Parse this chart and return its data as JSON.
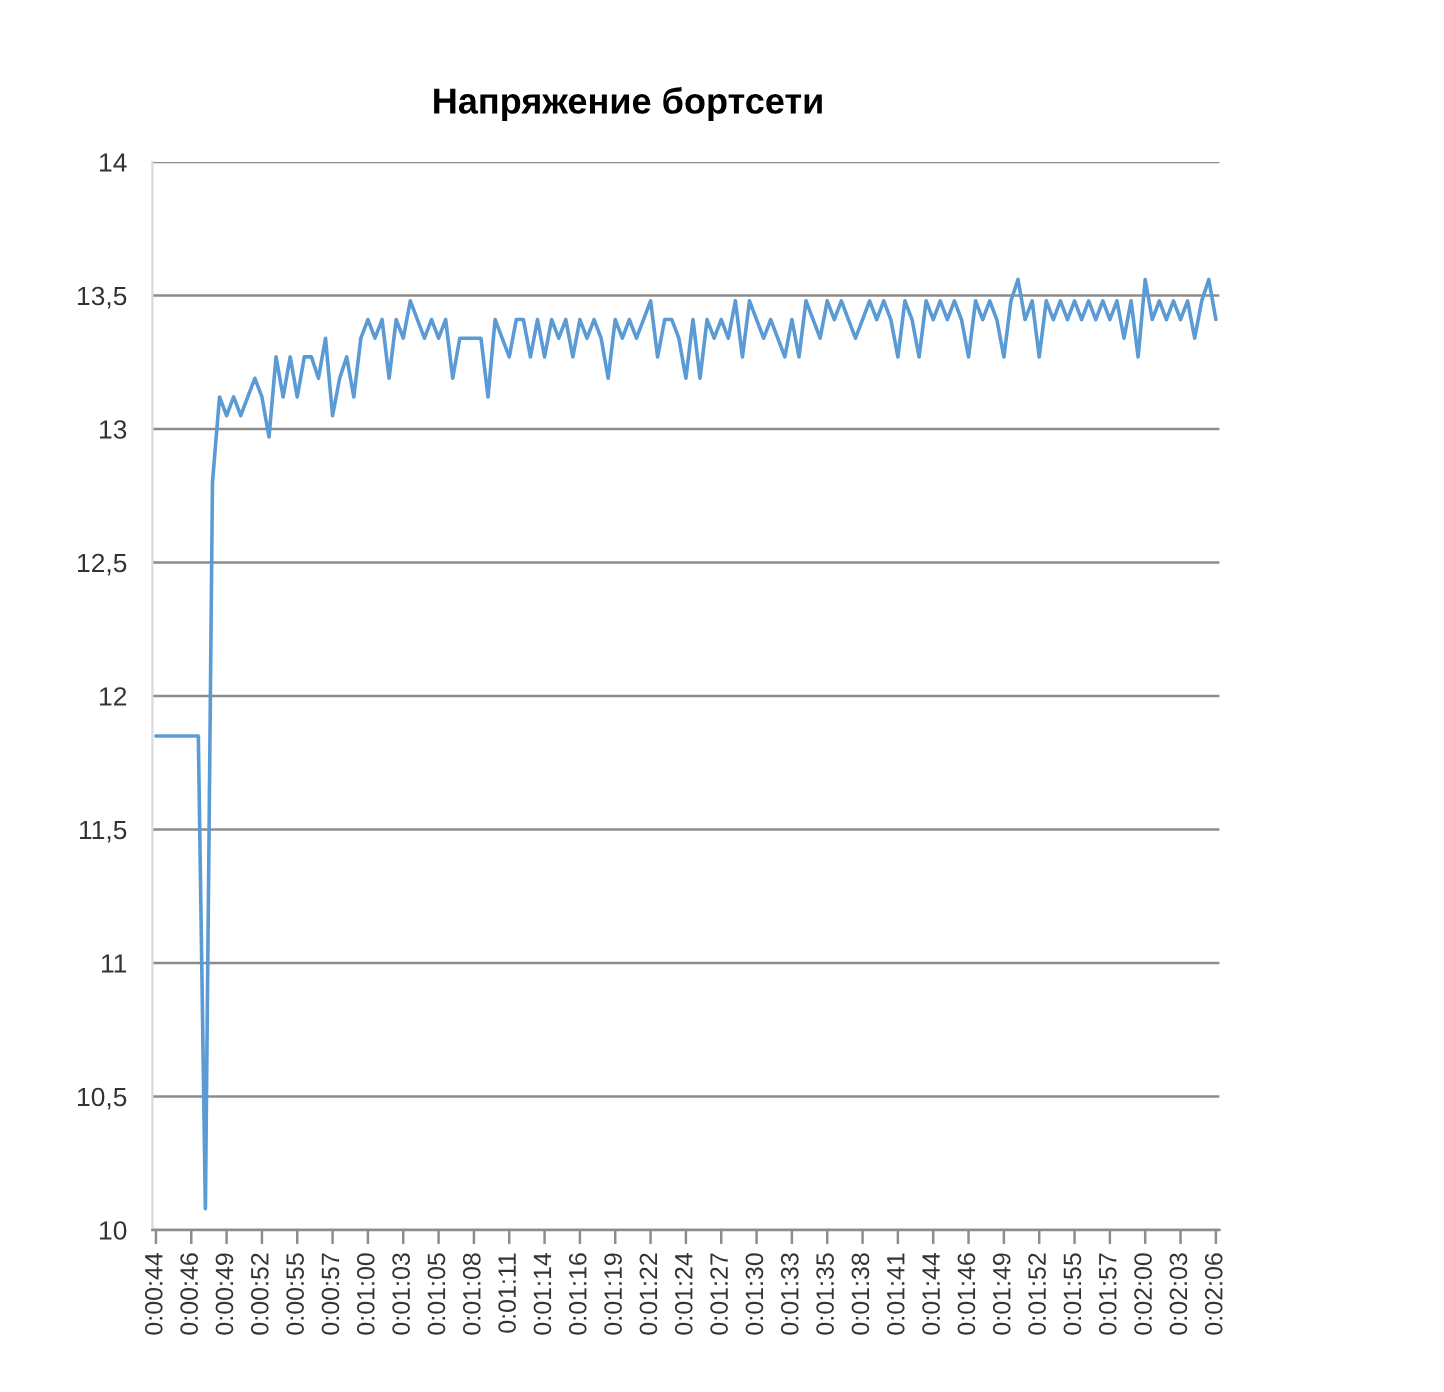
{
  "chart_data": {
    "type": "line",
    "title": "Напряжение бортсети",
    "categories": [
      "0:00:44",
      null,
      null,
      null,
      null,
      "0:00:46",
      null,
      null,
      null,
      null,
      "0:00:49",
      null,
      null,
      null,
      null,
      "0:00:52",
      null,
      null,
      null,
      null,
      "0:00:55",
      null,
      null,
      null,
      null,
      "0:00:57",
      null,
      null,
      null,
      null,
      "0:01:00",
      null,
      null,
      null,
      null,
      "0:01:03",
      null,
      null,
      null,
      null,
      "0:01:05",
      null,
      null,
      null,
      null,
      "0:01:08",
      null,
      null,
      null,
      null,
      "0:01:11",
      null,
      null,
      null,
      null,
      "0:01:14",
      null,
      null,
      null,
      null,
      "0:01:16",
      null,
      null,
      null,
      null,
      "0:01:19",
      null,
      null,
      null,
      null,
      "0:01:22",
      null,
      null,
      null,
      null,
      "0:01:24",
      null,
      null,
      null,
      null,
      "0:01:27",
      null,
      null,
      null,
      null,
      "0:01:30",
      null,
      null,
      null,
      null,
      "0:01:33",
      null,
      null,
      null,
      null,
      "0:01:35",
      null,
      null,
      null,
      null,
      "0:01:38",
      null,
      null,
      null,
      null,
      "0:01:41",
      null,
      null,
      null,
      null,
      "0:01:44",
      null,
      null,
      null,
      null,
      "0:01:46",
      null,
      null,
      null,
      null,
      "0:01:49",
      null,
      null,
      null,
      null,
      "0:01:52",
      null,
      null,
      null,
      null,
      "0:01:55",
      null,
      null,
      null,
      null,
      "0:01:57",
      null,
      null,
      null,
      null,
      "0:02:00",
      null,
      null,
      null,
      null,
      "0:02:03",
      null,
      null,
      null,
      null,
      "0:02:06"
    ],
    "series": [
      {
        "color": "#5b9bd5",
        "values": [
          11.85,
          11.85,
          11.85,
          11.85,
          11.85,
          11.85,
          11.85,
          10.08,
          12.8,
          13.12,
          13.05,
          13.12,
          13.05,
          13.12,
          13.19,
          13.12,
          12.97,
          13.27,
          13.12,
          13.27,
          13.12,
          13.27,
          13.27,
          13.19,
          13.34,
          13.05,
          13.19,
          13.27,
          13.12,
          13.34,
          13.41,
          13.34,
          13.41,
          13.19,
          13.41,
          13.34,
          13.48,
          13.41,
          13.34,
          13.41,
          13.34,
          13.41,
          13.19,
          13.34,
          13.34,
          13.34,
          13.34,
          13.12,
          13.41,
          13.34,
          13.27,
          13.41,
          13.41,
          13.27,
          13.41,
          13.27,
          13.41,
          13.34,
          13.41,
          13.27,
          13.41,
          13.34,
          13.41,
          13.34,
          13.19,
          13.41,
          13.34,
          13.41,
          13.34,
          13.41,
          13.48,
          13.27,
          13.41,
          13.41,
          13.34,
          13.19,
          13.41,
          13.19,
          13.41,
          13.34,
          13.41,
          13.34,
          13.48,
          13.27,
          13.48,
          13.41,
          13.34,
          13.41,
          13.34,
          13.27,
          13.41,
          13.27,
          13.48,
          13.41,
          13.34,
          13.48,
          13.41,
          13.48,
          13.41,
          13.34,
          13.41,
          13.48,
          13.41,
          13.48,
          13.41,
          13.27,
          13.48,
          13.41,
          13.27,
          13.48,
          13.41,
          13.48,
          13.41,
          13.48,
          13.41,
          13.27,
          13.48,
          13.41,
          13.48,
          13.41,
          13.27,
          13.48,
          13.56,
          13.41,
          13.48,
          13.27,
          13.48,
          13.41,
          13.48,
          13.41,
          13.48,
          13.41,
          13.48,
          13.41,
          13.48,
          13.41,
          13.48,
          13.34,
          13.48,
          13.27,
          13.56,
          13.41,
          13.48,
          13.41,
          13.48,
          13.41,
          13.48,
          13.34,
          13.48,
          13.56,
          13.41
        ]
      }
    ],
    "ylim": [
      10,
      14
    ],
    "yticks": [
      10,
      {
        "value": 10.5,
        "label": "10,5"
      },
      11,
      {
        "value": 11.5,
        "label": "11,5"
      },
      12,
      {
        "value": 12.5,
        "label": "12,5"
      },
      13,
      {
        "value": 13.5,
        "label": "13,5"
      },
      14
    ],
    "grid": "y",
    "line_style": "solid"
  }
}
